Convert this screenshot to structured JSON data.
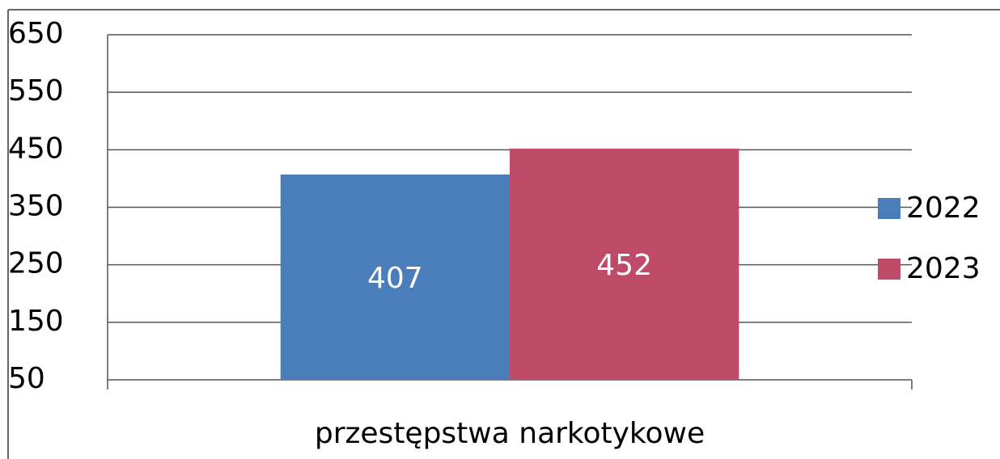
{
  "chart_data": {
    "type": "bar",
    "categories": [
      "przestępstwa narkotykowe"
    ],
    "series": [
      {
        "name": "2022",
        "color": "#4a7ebb",
        "values": [
          407
        ]
      },
      {
        "name": "2023",
        "color": "#be4b68",
        "values": [
          452
        ]
      }
    ],
    "ylim": [
      50,
      650
    ],
    "yticks": [
      50,
      150,
      250,
      350,
      450,
      550,
      650
    ],
    "grid": true,
    "legend": "right",
    "data_labels": true
  }
}
